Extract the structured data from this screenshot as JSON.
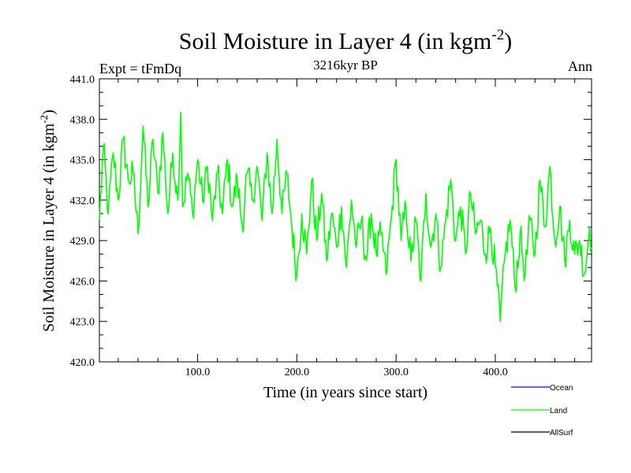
{
  "chart_data": {
    "type": "line",
    "title": "Soil Moisture in Layer 4 (in kgm",
    "title_sup": "-2",
    "title_close": ")",
    "subtitle_left": "Expt = tFmDq",
    "subtitle_center": "3216kyr BP",
    "subtitle_right": "Ann",
    "xlabel": "Time (in years since start)",
    "ylabel": "Soil Moisture in Layer 4 (in kgm",
    "ylabel_sup": "-2",
    "ylabel_close": ")",
    "xlim": [
      1,
      497
    ],
    "ylim": [
      420.0,
      441.0
    ],
    "xticks": [
      100,
      200,
      300,
      400
    ],
    "xtick_labels": [
      "100.0",
      "200.0",
      "300.0",
      "400.0"
    ],
    "yticks": [
      420,
      423,
      426,
      429,
      432,
      435,
      438,
      441
    ],
    "ytick_labels": [
      "420.0",
      "423.0",
      "426.0",
      "429.0",
      "432.0",
      "435.0",
      "438.0",
      "441.0"
    ],
    "series": [
      {
        "name": "Ocean",
        "color": "#0000ff",
        "values": []
      },
      {
        "name": "Land",
        "color": "#00ff00",
        "x": [
          1,
          5,
          10,
          15,
          20,
          25,
          30,
          35,
          40,
          45,
          50,
          55,
          60,
          65,
          70,
          75,
          80,
          83,
          85,
          90,
          95,
          100,
          105,
          110,
          115,
          120,
          125,
          130,
          135,
          140,
          145,
          150,
          155,
          160,
          165,
          170,
          175,
          180,
          185,
          190,
          195,
          200,
          205,
          210,
          215,
          220,
          225,
          230,
          235,
          240,
          245,
          250,
          255,
          260,
          265,
          270,
          275,
          280,
          285,
          290,
          295,
          300,
          305,
          310,
          315,
          320,
          325,
          330,
          335,
          340,
          345,
          350,
          355,
          360,
          365,
          370,
          375,
          380,
          385,
          390,
          395,
          400,
          405,
          410,
          415,
          420,
          425,
          430,
          435,
          440,
          445,
          450,
          455,
          460,
          465,
          470,
          475,
          480,
          485,
          490,
          495,
          497
        ],
        "values": [
          430.5,
          436.0,
          431.0,
          435.5,
          432.0,
          436.5,
          433.5,
          434.0,
          429.5,
          437.5,
          431.5,
          436.5,
          432.5,
          437.0,
          431.0,
          435.5,
          432.0,
          438.5,
          431.5,
          434.0,
          431.0,
          435.0,
          432.0,
          434.5,
          430.5,
          434.0,
          431.0,
          435.0,
          431.5,
          433.5,
          430.0,
          434.0,
          432.0,
          434.5,
          430.5,
          435.5,
          431.0,
          436.5,
          431.0,
          434.0,
          430.0,
          426.5,
          431.0,
          428.0,
          433.5,
          429.0,
          432.5,
          427.5,
          431.0,
          428.5,
          431.5,
          427.0,
          432.0,
          428.5,
          430.5,
          427.5,
          431.0,
          428.0,
          429.5,
          426.5,
          430.5,
          435.0,
          429.0,
          431.5,
          427.5,
          430.5,
          426.0,
          432.5,
          428.5,
          431.0,
          427.0,
          430.5,
          433.5,
          429.0,
          431.5,
          428.0,
          432.5,
          429.5,
          430.5,
          428.0,
          430.0,
          427.0,
          423.0,
          428.0,
          430.5,
          425.5,
          429.5,
          426.5,
          430.5,
          428.0,
          433.5,
          430.0,
          434.5,
          429.0,
          431.5,
          427.5,
          430.5,
          428.0,
          429.0,
          426.5,
          430.0,
          428.5
        ]
      },
      {
        "name": "AllSurf",
        "color": "#000000",
        "values": []
      }
    ],
    "legend": [
      "Ocean",
      "Land",
      "AllSurf"
    ],
    "legend_position": "bottom-right",
    "grid": false
  }
}
